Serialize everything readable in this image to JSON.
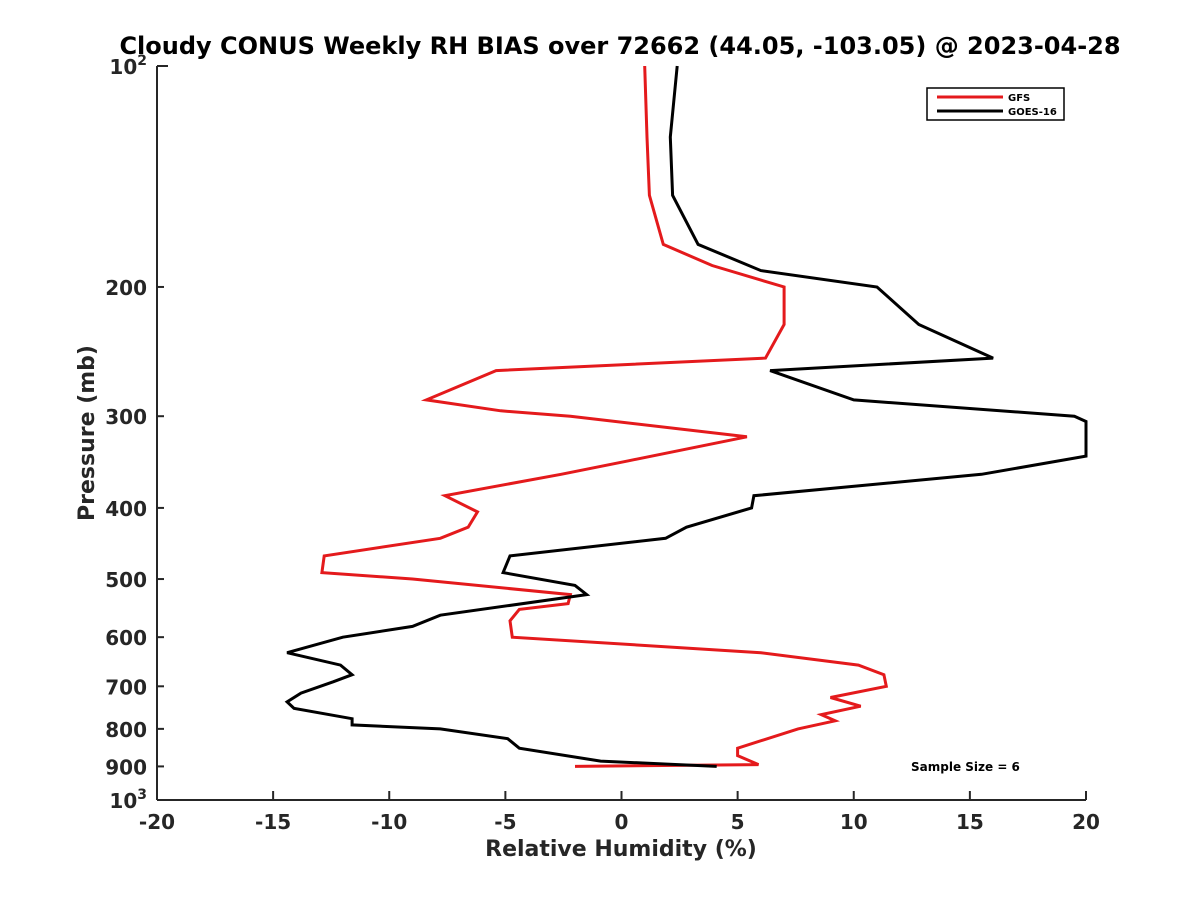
{
  "chart_data": {
    "type": "line",
    "title": "Cloudy CONUS Weekly RH BIAS over 72662 (44.05, -103.05) @ 2023-04-28",
    "xlabel": "Relative Humidity (%)",
    "ylabel": "Pressure (mb)",
    "xlim": [
      -20,
      20
    ],
    "ylim": [
      100,
      1000
    ],
    "y_scale": "log",
    "y_reversed": true,
    "x_ticks": [
      {
        "value": -20,
        "label": "-20"
      },
      {
        "value": -15,
        "label": "-15"
      },
      {
        "value": -10,
        "label": "-10"
      },
      {
        "value": -5,
        "label": "-5"
      },
      {
        "value": 0,
        "label": "0"
      },
      {
        "value": 5,
        "label": "5"
      },
      {
        "value": 10,
        "label": "10"
      },
      {
        "value": 15,
        "label": "15"
      },
      {
        "value": 20,
        "label": "20"
      }
    ],
    "y_ticks": [
      {
        "value": 100,
        "base": "10",
        "exp": "2"
      },
      {
        "value": 200,
        "base": "200",
        "exp": ""
      },
      {
        "value": 300,
        "base": "300",
        "exp": ""
      },
      {
        "value": 400,
        "base": "400",
        "exp": ""
      },
      {
        "value": 500,
        "base": "500",
        "exp": ""
      },
      {
        "value": 600,
        "base": "600",
        "exp": ""
      },
      {
        "value": 700,
        "base": "700",
        "exp": ""
      },
      {
        "value": 800,
        "base": "800",
        "exp": ""
      },
      {
        "value": 900,
        "base": "900",
        "exp": ""
      },
      {
        "value": 1000,
        "base": "10",
        "exp": "3"
      }
    ],
    "grid": false,
    "legend_position": "top-right",
    "annotation": "Sample Size = 6",
    "series": [
      {
        "name": "GFS",
        "color": "#e41a1c",
        "points": [
          [
            1.0,
            100
          ],
          [
            1.1,
            125
          ],
          [
            1.2,
            150
          ],
          [
            1.8,
            175
          ],
          [
            3.9,
            187
          ],
          [
            7.0,
            200
          ],
          [
            7.0,
            225
          ],
          [
            6.2,
            250
          ],
          [
            -5.4,
            260
          ],
          [
            -8.4,
            285
          ],
          [
            -5.2,
            295
          ],
          [
            -2.2,
            300
          ],
          [
            5.4,
            320
          ],
          [
            0.3,
            345
          ],
          [
            -2.6,
            360
          ],
          [
            -7.6,
            385
          ],
          [
            -6.2,
            405
          ],
          [
            -6.6,
            425
          ],
          [
            -7.8,
            440
          ],
          [
            -12.8,
            465
          ],
          [
            -12.9,
            490
          ],
          [
            -9.0,
            500
          ],
          [
            -2.2,
            525
          ],
          [
            -2.3,
            540
          ],
          [
            -4.4,
            550
          ],
          [
            -4.8,
            570
          ],
          [
            -4.7,
            600
          ],
          [
            6.0,
            630
          ],
          [
            10.2,
            655
          ],
          [
            11.3,
            675
          ],
          [
            11.4,
            700
          ],
          [
            9.0,
            725
          ],
          [
            10.3,
            745
          ],
          [
            8.6,
            765
          ],
          [
            9.2,
            780
          ],
          [
            7.6,
            800
          ],
          [
            5.0,
            850
          ],
          [
            5.0,
            870
          ],
          [
            5.9,
            895
          ],
          [
            -2.0,
            900
          ]
        ]
      },
      {
        "name": "GOES-16",
        "color": "#000000",
        "points": [
          [
            2.4,
            100
          ],
          [
            2.1,
            125
          ],
          [
            2.2,
            150
          ],
          [
            3.3,
            175
          ],
          [
            6.0,
            190
          ],
          [
            11.0,
            200
          ],
          [
            12.8,
            225
          ],
          [
            16.0,
            250
          ],
          [
            6.4,
            260
          ],
          [
            10.0,
            285
          ],
          [
            19.5,
            300
          ],
          [
            20.0,
            305
          ],
          [
            20.0,
            340
          ],
          [
            15.5,
            360
          ],
          [
            5.7,
            385
          ],
          [
            5.6,
            400
          ],
          [
            2.8,
            425
          ],
          [
            1.9,
            440
          ],
          [
            -4.8,
            465
          ],
          [
            -5.1,
            490
          ],
          [
            -2.0,
            510
          ],
          [
            -1.5,
            525
          ],
          [
            -7.8,
            560
          ],
          [
            -9.0,
            580
          ],
          [
            -12.0,
            600
          ],
          [
            -14.4,
            630
          ],
          [
            -12.1,
            655
          ],
          [
            -11.6,
            675
          ],
          [
            -12.4,
            690
          ],
          [
            -13.8,
            715
          ],
          [
            -14.4,
            735
          ],
          [
            -14.1,
            750
          ],
          [
            -11.6,
            775
          ],
          [
            -11.6,
            790
          ],
          [
            -7.8,
            800
          ],
          [
            -4.9,
            825
          ],
          [
            -4.4,
            850
          ],
          [
            -0.9,
            885
          ],
          [
            4.1,
            900
          ]
        ]
      }
    ]
  },
  "colors": {
    "axis": "#262626",
    "gfs_line": "#e41a1c",
    "goes_line": "#000000"
  }
}
